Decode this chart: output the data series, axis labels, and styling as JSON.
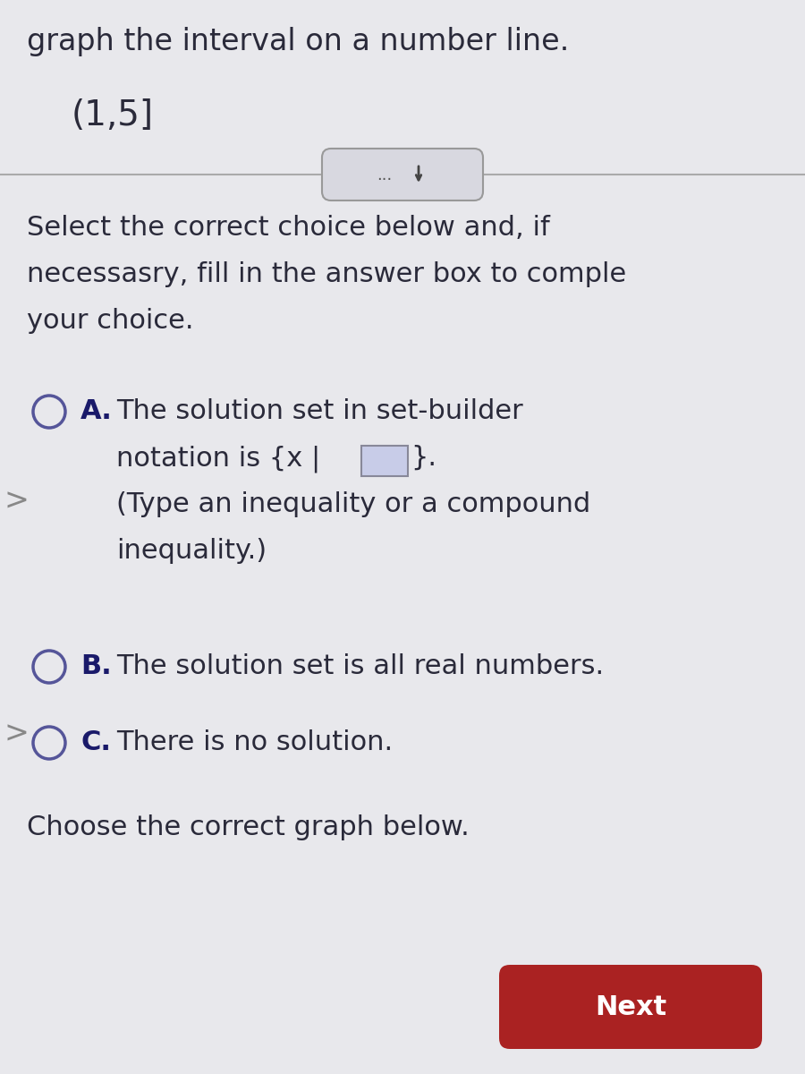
{
  "background_color": "#e8e8ec",
  "title_text": "graph the interval on a number line.",
  "interval_text": "(1,5]",
  "body_text_lines": [
    "Select the correct choice below and, if",
    "necessasry, fill in the answer box to comple",
    "your choice."
  ],
  "option_A_bold": "A.",
  "option_A_text1": "The solution set in set-builder",
  "option_A_text2_pre": "notation is {x | ",
  "option_A_text2_post": "}.",
  "option_A_text3": "(Type an inequality or a compound",
  "option_A_text4": "inequality.)",
  "option_B_bold": "B.",
  "option_B_text": "The solution set is all real numbers.",
  "option_C_bold": "C.",
  "option_C_text": "There is no solution.",
  "footer_text": "Choose the correct graph below.",
  "next_button_text": "Next",
  "next_button_color": "#aa2222",
  "text_color": "#2a2a3a",
  "label_color": "#1a1a6a",
  "circle_color": "#555599",
  "pill_bg": "#d8d8e0",
  "pill_border": "#999999",
  "divider_color": "#aaaaaa",
  "box_fill": "#c8cce8",
  "box_edge": "#888899"
}
